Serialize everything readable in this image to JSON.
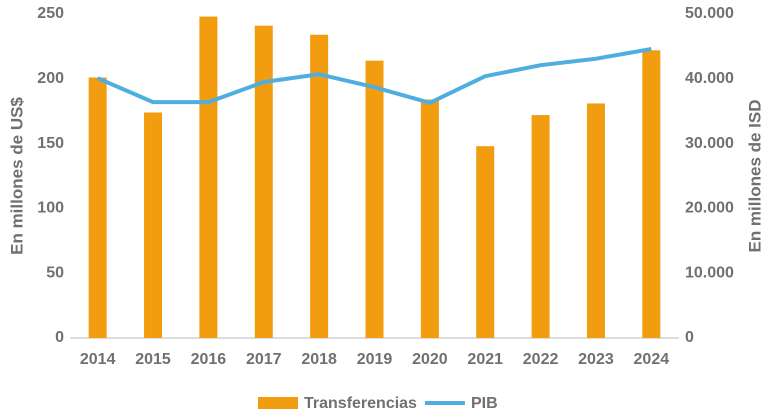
{
  "chart_data": {
    "type": "bar",
    "categories": [
      "2014",
      "2015",
      "2016",
      "2017",
      "2018",
      "2019",
      "2020",
      "2021",
      "2022",
      "2023",
      "2024"
    ],
    "series": [
      {
        "name": "Transferencias",
        "type": "bar",
        "color": "#f29c0f",
        "values": [
          201,
          174,
          248,
          241,
          234,
          214,
          184,
          148,
          172,
          181,
          222
        ]
      },
      {
        "name": "PIB",
        "type": "line",
        "axis": "y2",
        "color": "#4faee0",
        "values": [
          40100,
          36400,
          36400,
          39500,
          40700,
          38700,
          36300,
          40400,
          42100,
          43100,
          44600
        ]
      }
    ],
    "ylabel": "En millones de US$",
    "y2label": "En millones de ISD",
    "ylim": [
      0,
      250
    ],
    "yticks": [
      0,
      50,
      100,
      150,
      200,
      250
    ],
    "y2lim": [
      0,
      50000
    ],
    "y2ticks": [
      0,
      {
        "value": 10000,
        "label": "10.000"
      },
      {
        "value": 20000,
        "label": "20.000"
      },
      {
        "value": 30000,
        "label": "30.000"
      },
      {
        "value": 40000,
        "label": "40.000"
      },
      {
        "value": 50000,
        "label": "50.000"
      }
    ],
    "legend": "bottom"
  }
}
